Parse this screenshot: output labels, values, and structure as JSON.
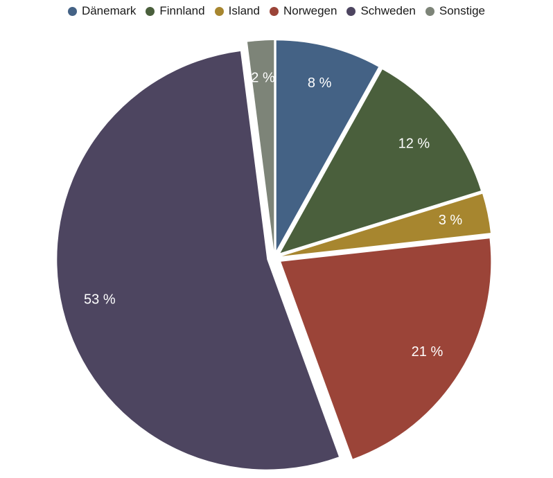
{
  "chart_data": {
    "type": "pie",
    "title": "",
    "legend_position": "top",
    "slices": [
      {
        "label": "Dänemark",
        "value": 8,
        "value_label": "8 %",
        "color": "#446285"
      },
      {
        "label": "Finnland",
        "value": 12,
        "value_label": "12 %",
        "color": "#4a5f3c"
      },
      {
        "label": "Island",
        "value": 3,
        "value_label": "3 %",
        "color": "#a7862f"
      },
      {
        "label": "Norwegen",
        "value": 21,
        "value_label": "21 %",
        "color": "#9b4438"
      },
      {
        "label": "Schweden",
        "value": 53,
        "value_label": "53 %",
        "color": "#4d4560"
      },
      {
        "label": "Sonstige",
        "value": 2,
        "value_label": "2 %",
        "color": "#7d8478"
      }
    ]
  }
}
